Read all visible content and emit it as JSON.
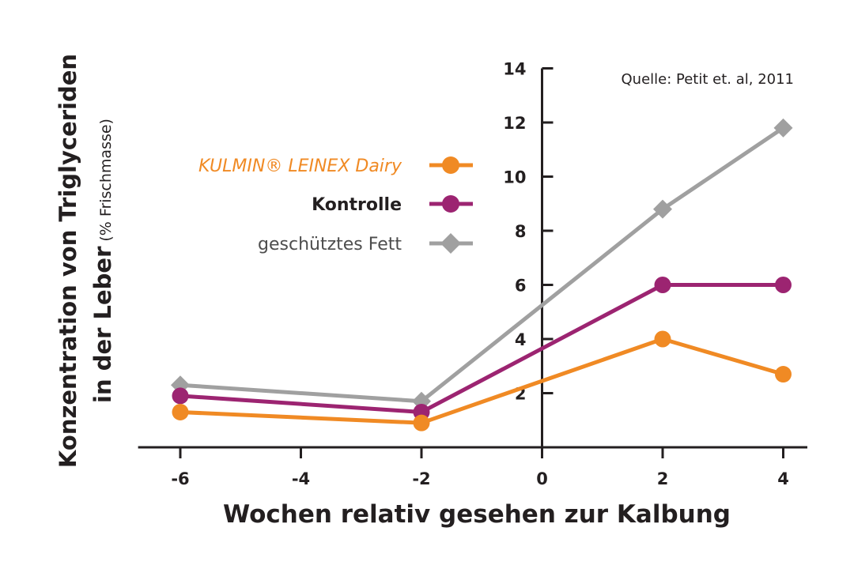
{
  "chart_data": {
    "type": "line",
    "source": "Quelle: Petit et. al, 2011",
    "xlabel": "Wochen relativ gesehen zur Kalbung",
    "ylabel_line1": "Konzentration von Triglyceriden",
    "ylabel_line2_main": "in der Leber",
    "ylabel_line2_sub": "(% Frischmasse)",
    "x_ticks": [
      -6,
      -4,
      -2,
      0,
      2,
      4
    ],
    "y_ticks": [
      2,
      4,
      6,
      8,
      10,
      12,
      14
    ],
    "xlim": [
      -6.7,
      4.4
    ],
    "ylim": [
      0,
      14
    ],
    "series": [
      {
        "name": "KULMIN® LEINEX Dairy",
        "color": "#f08a24",
        "marker": "circle",
        "name_style": "italic",
        "x": [
          -6,
          -2,
          2,
          4
        ],
        "y": [
          1.3,
          0.9,
          4.0,
          2.7
        ]
      },
      {
        "name": "Kontrolle",
        "color": "#9c2471",
        "marker": "circle",
        "name_style": "bold",
        "x": [
          -6,
          -2,
          2,
          4
        ],
        "y": [
          1.9,
          1.3,
          6.0,
          6.0
        ]
      },
      {
        "name": "geschütztes Fett",
        "color": "#a0a0a0",
        "marker": "diamond",
        "name_style": "normal",
        "x": [
          -6,
          -2,
          2,
          4
        ],
        "y": [
          2.3,
          1.7,
          8.8,
          11.8
        ]
      }
    ],
    "legend_text_colors": [
      "#f08a24",
      "#231f20",
      "#4d4d4d"
    ],
    "legend_placement": "left-center",
    "grid": false
  }
}
